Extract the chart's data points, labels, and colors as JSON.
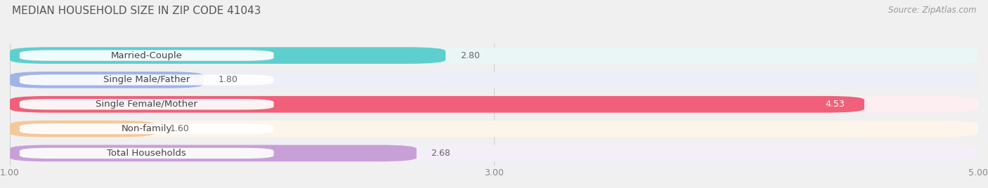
{
  "title": "Median Household Size in Zip Code 41043",
  "title_upper": "MEDIAN HOUSEHOLD SIZE IN ZIP CODE 41043",
  "source": "Source: ZipAtlas.com",
  "categories": [
    "Married-Couple",
    "Single Male/Father",
    "Single Female/Mother",
    "Non-family",
    "Total Households"
  ],
  "values": [
    2.8,
    1.8,
    4.53,
    1.6,
    2.68
  ],
  "bar_colors": [
    "#5ecfcf",
    "#a0b4e8",
    "#f0607a",
    "#f5c89a",
    "#c8a0d8"
  ],
  "bar_bg_colors": [
    "#eaf6f6",
    "#eceef8",
    "#fdeef2",
    "#fdf4ea",
    "#f4eef8"
  ],
  "label_bg_color": "#ffffff",
  "value_colors": [
    "#666666",
    "#666666",
    "#ffffff",
    "#666666",
    "#666666"
  ],
  "xlim_min": 1.0,
  "xlim_max": 5.0,
  "xticks": [
    1.0,
    3.0,
    5.0
  ],
  "xtick_labels": [
    "1.00",
    "3.00",
    "5.00"
  ],
  "chart_bg": "#f0f0f0",
  "bar_area_bg": "#f8f8f8",
  "title_fontsize": 11,
  "label_fontsize": 9.5,
  "value_fontsize": 9,
  "source_fontsize": 8.5,
  "tick_fontsize": 9
}
